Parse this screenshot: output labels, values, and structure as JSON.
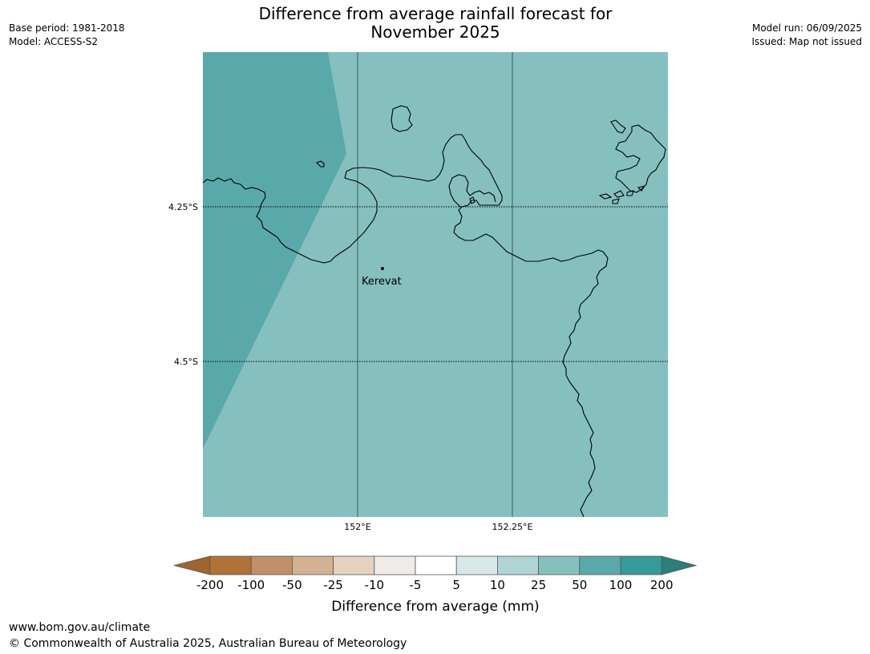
{
  "title": {
    "line1": "Difference from average rainfall forecast for",
    "line2": "November 2025"
  },
  "meta_left": {
    "base_period": "Base period: 1981-2018",
    "model": "Model: ACCESS-S2"
  },
  "meta_right": {
    "model_run": "Model run: 06/09/2025",
    "issued": "Issued: Map not issued"
  },
  "map": {
    "place_label": "Kerevat",
    "lat_labels": [
      "4.25°S",
      "4.5°S"
    ],
    "lon_labels": [
      "152°E",
      "152.25°E"
    ],
    "category_colors": {
      "50 to 100": "#5aa9aa",
      "25 to 50": "#85c0bf"
    },
    "coastline_color": "#000000"
  },
  "legend": {
    "title": "Difference from average (mm)",
    "tick_labels": [
      "-200",
      "-100",
      "-50",
      "-25",
      "-10",
      "-5",
      "5",
      "10",
      "25",
      "50",
      "100",
      "200"
    ],
    "colors": [
      "#a0642e",
      "#b07238",
      "#c09068",
      "#d4b192",
      "#e4d1c0",
      "#efebe6",
      "#ffffff",
      "#d6e9e8",
      "#aed5d4",
      "#84c0be",
      "#5aa9aa",
      "#349b98",
      "#2c7e7a"
    ]
  },
  "footer": {
    "url": "www.bom.gov.au/climate",
    "copyright": "© Commonwealth of Australia 2025, Australian Bureau of Meteorology"
  }
}
